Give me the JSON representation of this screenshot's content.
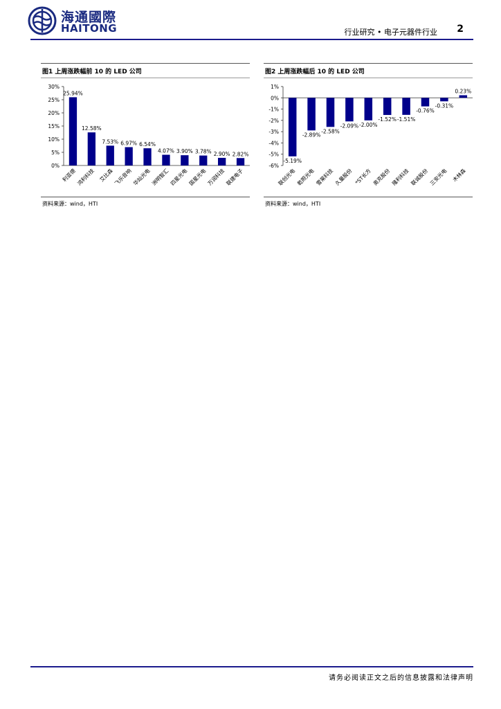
{
  "header": {
    "logo_cn": "海通國際",
    "logo_en": "HAITONG",
    "title": "行业研究 • 电子元器件行业",
    "page_number": "2"
  },
  "figures": [
    {
      "title": "图1  上周涨跌幅前 10 的 LED 公司",
      "source": "资料来源：wind，HTI",
      "chart_data": {
        "type": "bar",
        "categories": [
          "利亚德",
          "鸿利科技",
          "艾比森",
          "飞乐音响",
          "华灿光电",
          "洲明智汇",
          "四星光电",
          "国星光电",
          "万润科技",
          "联建电子"
        ],
        "values": [
          25.94,
          12.58,
          7.53,
          6.97,
          6.54,
          4.07,
          3.9,
          3.78,
          2.9,
          2.82
        ],
        "data_labels": [
          "25.94%",
          "12.58%",
          "7.53%",
          "6.97%",
          "6.54%",
          "4.07%",
          "3.90%",
          "3.78%",
          "2.90%",
          "2.82%"
        ],
        "yticks": [
          0,
          5,
          10,
          15,
          20,
          25,
          30
        ],
        "ytick_labels": [
          "0%",
          "5%",
          "10%",
          "15%",
          "20%",
          "25%",
          "30%"
        ],
        "ylim": [
          0,
          30
        ],
        "bar_color": "#00008b"
      }
    },
    {
      "title": "图2  上周涨跌幅后 10 的 LED 公司",
      "source": "资料来源：wind，HTI",
      "chart_data": {
        "type": "bar",
        "categories": [
          "联创光电",
          "乾照光电",
          "雪莱科技",
          "久量股份",
          "*ST长方",
          "奥克股份",
          "隆利科技",
          "联诚股份",
          "三安光电",
          "木林森"
        ],
        "values": [
          -5.19,
          -2.89,
          -2.58,
          -2.09,
          -2.0,
          -1.52,
          -1.51,
          -0.76,
          -0.31,
          0.23
        ],
        "data_labels": [
          "-5.19%",
          "-2.89%",
          "-2.58%",
          "-2.09%",
          "-2.00%",
          "-1.52%",
          "-1.51%",
          "-0.76%",
          "-0.31%",
          "0.23%"
        ],
        "yticks": [
          1,
          0,
          -1,
          -2,
          -3,
          -4,
          -5,
          -6
        ],
        "ytick_labels": [
          "1%",
          "0%",
          "-1%",
          "-2%",
          "-3%",
          "-4%",
          "-5%",
          "-6%"
        ],
        "ylim": [
          -6,
          1
        ],
        "bar_color": "#00008b"
      }
    }
  ],
  "footer": {
    "disclaimer": "请务必阅读正文之后的信息披露和法律声明"
  }
}
